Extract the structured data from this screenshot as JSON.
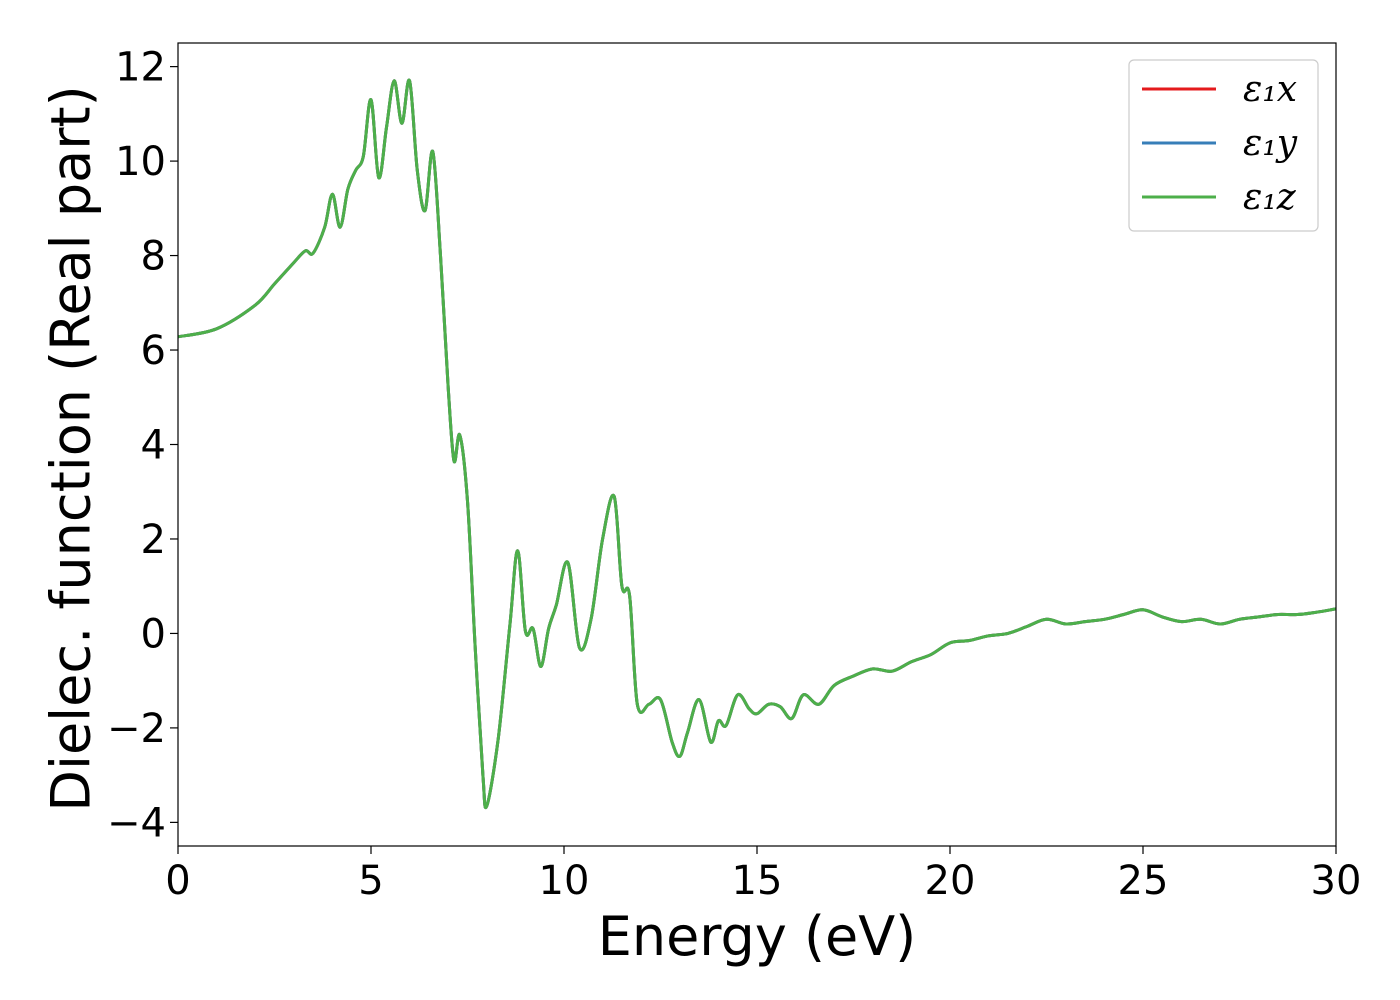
{
  "chart_data": {
    "type": "line",
    "title": "",
    "xlabel": "Energy (eV)",
    "ylabel": "Dielec. function (Real part)",
    "xlim": [
      0,
      30
    ],
    "ylim": [
      -4.5,
      12.5
    ],
    "xticks": [
      0,
      5,
      10,
      15,
      20,
      25,
      30
    ],
    "xtick_labels": [
      "0",
      "5",
      "10",
      "15",
      "20",
      "25",
      "30"
    ],
    "yticks": [
      -4,
      -2,
      0,
      2,
      4,
      6,
      8,
      10,
      12
    ],
    "ytick_labels": [
      "−4",
      "−2",
      "0",
      "2",
      "4",
      "6",
      "8",
      "10",
      "12"
    ],
    "grid": false,
    "legend_position": "top-right",
    "series": [
      {
        "name": "ε₁x",
        "color": "#e41a1c",
        "x": [
          0,
          1,
          2,
          2.5,
          3,
          3.3,
          3.5,
          3.8,
          4.0,
          4.2,
          4.4,
          4.6,
          4.8,
          5.0,
          5.2,
          5.4,
          5.6,
          5.8,
          6.0,
          6.2,
          6.4,
          6.6,
          6.8,
          7.0,
          7.15,
          7.3,
          7.5,
          7.7,
          7.9,
          8.0,
          8.3,
          8.6,
          8.8,
          9.0,
          9.2,
          9.4,
          9.6,
          9.8,
          10.1,
          10.4,
          10.7,
          11.0,
          11.3,
          11.5,
          11.7,
          11.9,
          12.2,
          12.5,
          12.8,
          13.0,
          13.2,
          13.5,
          13.8,
          14.0,
          14.2,
          14.5,
          14.8,
          15.0,
          15.3,
          15.6,
          15.9,
          16.2,
          16.6,
          17.0,
          17.5,
          18.0,
          18.5,
          19.0,
          19.5,
          20.0,
          20.5,
          21.0,
          21.5,
          22.0,
          22.5,
          23.0,
          23.5,
          24.0,
          24.5,
          25.0,
          25.5,
          26.0,
          26.5,
          27.0,
          27.5,
          28.0,
          28.5,
          29.0,
          29.5,
          30.0
        ],
        "y": [
          6.28,
          6.45,
          6.95,
          7.4,
          7.85,
          8.1,
          8.05,
          8.6,
          9.3,
          8.6,
          9.4,
          9.8,
          10.1,
          11.3,
          9.65,
          10.7,
          11.7,
          10.8,
          11.7,
          9.8,
          8.95,
          10.2,
          8.0,
          5.2,
          3.65,
          4.2,
          2.8,
          -0.3,
          -3.0,
          -3.65,
          -2.2,
          0.2,
          1.75,
          0.05,
          0.1,
          -0.7,
          0.1,
          0.6,
          1.5,
          -0.3,
          0.3,
          2.0,
          2.9,
          1.0,
          0.8,
          -1.5,
          -1.5,
          -1.4,
          -2.3,
          -2.6,
          -2.1,
          -1.4,
          -2.3,
          -1.85,
          -1.95,
          -1.3,
          -1.6,
          -1.7,
          -1.5,
          -1.55,
          -1.8,
          -1.3,
          -1.5,
          -1.1,
          -0.9,
          -0.75,
          -0.8,
          -0.6,
          -0.45,
          -0.2,
          -0.15,
          -0.05,
          0.0,
          0.15,
          0.3,
          0.2,
          0.25,
          0.3,
          0.4,
          0.5,
          0.35,
          0.25,
          0.3,
          0.2,
          0.3,
          0.35,
          0.4,
          0.4,
          0.45,
          0.52
        ]
      },
      {
        "name": "ε₁y",
        "color": "#377eb8",
        "x": [
          0,
          1,
          2,
          2.5,
          3,
          3.3,
          3.5,
          3.8,
          4.0,
          4.2,
          4.4,
          4.6,
          4.8,
          5.0,
          5.2,
          5.4,
          5.6,
          5.8,
          6.0,
          6.2,
          6.4,
          6.6,
          6.8,
          7.0,
          7.15,
          7.3,
          7.5,
          7.7,
          7.9,
          8.0,
          8.3,
          8.6,
          8.8,
          9.0,
          9.2,
          9.4,
          9.6,
          9.8,
          10.1,
          10.4,
          10.7,
          11.0,
          11.3,
          11.5,
          11.7,
          11.9,
          12.2,
          12.5,
          12.8,
          13.0,
          13.2,
          13.5,
          13.8,
          14.0,
          14.2,
          14.5,
          14.8,
          15.0,
          15.3,
          15.6,
          15.9,
          16.2,
          16.6,
          17.0,
          17.5,
          18.0,
          18.5,
          19.0,
          19.5,
          20.0,
          20.5,
          21.0,
          21.5,
          22.0,
          22.5,
          23.0,
          23.5,
          24.0,
          24.5,
          25.0,
          25.5,
          26.0,
          26.5,
          27.0,
          27.5,
          28.0,
          28.5,
          29.0,
          29.5,
          30.0
        ],
        "y": [
          6.28,
          6.45,
          6.95,
          7.4,
          7.85,
          8.1,
          8.05,
          8.6,
          9.3,
          8.6,
          9.4,
          9.8,
          10.1,
          11.3,
          9.65,
          10.7,
          11.7,
          10.8,
          11.7,
          9.8,
          8.95,
          10.2,
          8.0,
          5.2,
          3.65,
          4.2,
          2.8,
          -0.3,
          -3.0,
          -3.65,
          -2.2,
          0.2,
          1.75,
          0.05,
          0.1,
          -0.7,
          0.1,
          0.6,
          1.5,
          -0.3,
          0.3,
          2.0,
          2.9,
          1.0,
          0.8,
          -1.5,
          -1.5,
          -1.4,
          -2.3,
          -2.6,
          -2.1,
          -1.4,
          -2.3,
          -1.85,
          -1.95,
          -1.3,
          -1.6,
          -1.7,
          -1.5,
          -1.55,
          -1.8,
          -1.3,
          -1.5,
          -1.1,
          -0.9,
          -0.75,
          -0.8,
          -0.6,
          -0.45,
          -0.2,
          -0.15,
          -0.05,
          0.0,
          0.15,
          0.3,
          0.2,
          0.25,
          0.3,
          0.4,
          0.5,
          0.35,
          0.25,
          0.3,
          0.2,
          0.3,
          0.35,
          0.4,
          0.4,
          0.45,
          0.52
        ]
      },
      {
        "name": "ε₁z",
        "color": "#4daf4a",
        "x": [
          0,
          1,
          2,
          2.5,
          3,
          3.3,
          3.5,
          3.8,
          4.0,
          4.2,
          4.4,
          4.6,
          4.8,
          5.0,
          5.2,
          5.4,
          5.6,
          5.8,
          6.0,
          6.2,
          6.4,
          6.6,
          6.8,
          7.0,
          7.15,
          7.3,
          7.5,
          7.7,
          7.9,
          8.0,
          8.3,
          8.6,
          8.8,
          9.0,
          9.2,
          9.4,
          9.6,
          9.8,
          10.1,
          10.4,
          10.7,
          11.0,
          11.3,
          11.5,
          11.7,
          11.9,
          12.2,
          12.5,
          12.8,
          13.0,
          13.2,
          13.5,
          13.8,
          14.0,
          14.2,
          14.5,
          14.8,
          15.0,
          15.3,
          15.6,
          15.9,
          16.2,
          16.6,
          17.0,
          17.5,
          18.0,
          18.5,
          19.0,
          19.5,
          20.0,
          20.5,
          21.0,
          21.5,
          22.0,
          22.5,
          23.0,
          23.5,
          24.0,
          24.5,
          25.0,
          25.5,
          26.0,
          26.5,
          27.0,
          27.5,
          28.0,
          28.5,
          29.0,
          29.5,
          30.0
        ],
        "y": [
          6.28,
          6.45,
          6.95,
          7.4,
          7.85,
          8.1,
          8.05,
          8.6,
          9.3,
          8.6,
          9.4,
          9.8,
          10.1,
          11.3,
          9.65,
          10.7,
          11.7,
          10.8,
          11.7,
          9.8,
          8.95,
          10.2,
          8.0,
          5.2,
          3.65,
          4.2,
          2.8,
          -0.3,
          -3.0,
          -3.65,
          -2.2,
          0.2,
          1.75,
          0.05,
          0.1,
          -0.7,
          0.1,
          0.6,
          1.5,
          -0.3,
          0.3,
          2.0,
          2.9,
          1.0,
          0.8,
          -1.5,
          -1.5,
          -1.4,
          -2.3,
          -2.6,
          -2.1,
          -1.4,
          -2.3,
          -1.85,
          -1.95,
          -1.3,
          -1.6,
          -1.7,
          -1.5,
          -1.55,
          -1.8,
          -1.3,
          -1.5,
          -1.1,
          -0.9,
          -0.75,
          -0.8,
          -0.6,
          -0.45,
          -0.2,
          -0.15,
          -0.05,
          0.0,
          0.15,
          0.3,
          0.2,
          0.25,
          0.3,
          0.4,
          0.5,
          0.35,
          0.25,
          0.3,
          0.2,
          0.3,
          0.35,
          0.4,
          0.4,
          0.45,
          0.52
        ]
      }
    ]
  }
}
